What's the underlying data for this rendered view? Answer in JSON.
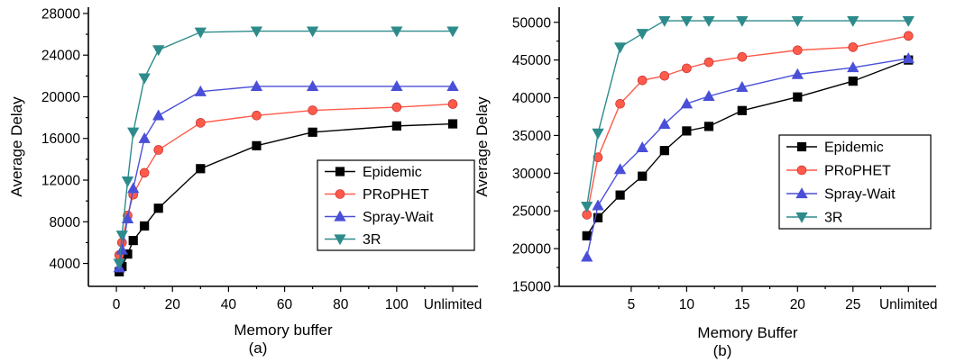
{
  "chart_data": [
    {
      "type": "line",
      "panel_label": "(a)",
      "xlabel": "Memory buffer",
      "ylabel": "Average Delay",
      "x_tick_labels": [
        "0",
        "20",
        "40",
        "60",
        "80",
        "100",
        "Unlimited"
      ],
      "x_tick_values": [
        0,
        20,
        40,
        60,
        80,
        100,
        120
      ],
      "y_ticks": [
        4000,
        8000,
        12000,
        16000,
        20000,
        24000,
        28000
      ],
      "xlim": [
        -10,
        129
      ],
      "ylim": [
        1800,
        28600
      ],
      "legend_position": "center-right",
      "x": [
        1,
        2,
        4,
        6,
        10,
        15,
        30,
        50,
        70,
        100,
        120
      ],
      "series": [
        {
          "name": "Epidemic",
          "color": "#000000",
          "marker": "square",
          "values": [
            3200,
            3700,
            4900,
            6200,
            7600,
            9300,
            13100,
            15300,
            16600,
            17200,
            17400
          ]
        },
        {
          "name": "PRoPHET",
          "color": "#ff5a4a",
          "marker": "circle",
          "values": [
            4800,
            6000,
            8600,
            10600,
            12700,
            14900,
            17500,
            18200,
            18700,
            19000,
            19300
          ]
        },
        {
          "name": "Spray-Wait",
          "color": "#4a4fd8",
          "marker": "triangle-up",
          "values": [
            3600,
            5300,
            8300,
            11200,
            16000,
            18200,
            20500,
            21000,
            21000,
            21000,
            21000
          ]
        },
        {
          "name": "3R",
          "color": "#2e8b8b",
          "marker": "triangle-down",
          "values": [
            4000,
            6700,
            11900,
            16600,
            21800,
            24500,
            26200,
            26300,
            26300,
            26300,
            26300
          ]
        }
      ]
    },
    {
      "type": "line",
      "panel_label": "(b)",
      "xlabel": "Memory Buffer",
      "ylabel": "Average Delay",
      "x_tick_labels": [
        "5",
        "10",
        "15",
        "20",
        "25",
        "Unlimited"
      ],
      "x_tick_values": [
        5,
        10,
        15,
        20,
        25,
        30
      ],
      "y_ticks": [
        15000,
        20000,
        25000,
        30000,
        35000,
        40000,
        45000,
        50000
      ],
      "xlim": [
        -1.5,
        32.5
      ],
      "ylim": [
        15000,
        52000
      ],
      "legend_position": "center-right",
      "x": [
        1,
        2,
        4,
        6,
        8,
        10,
        12,
        15,
        20,
        25,
        30
      ],
      "series": [
        {
          "name": "Epidemic",
          "color": "#000000",
          "marker": "square",
          "values": [
            21700,
            24100,
            27100,
            29600,
            33000,
            35600,
            36200,
            38300,
            40100,
            42200,
            45000
          ]
        },
        {
          "name": "PRoPHET",
          "color": "#ff5a4a",
          "marker": "circle",
          "values": [
            24500,
            32100,
            39200,
            42300,
            42900,
            43900,
            44700,
            45400,
            46300,
            46700,
            48200
          ]
        },
        {
          "name": "Spray-Wait",
          "color": "#4a4fd8",
          "marker": "triangle-up",
          "values": [
            18900,
            25700,
            30500,
            33400,
            36500,
            39200,
            40200,
            41400,
            43100,
            44000,
            45200
          ]
        },
        {
          "name": "3R",
          "color": "#2e8b8b",
          "marker": "triangle-down",
          "values": [
            25600,
            35300,
            46700,
            48500,
            50200,
            50200,
            50200,
            50200,
            50200,
            50200,
            50200
          ]
        }
      ]
    }
  ]
}
